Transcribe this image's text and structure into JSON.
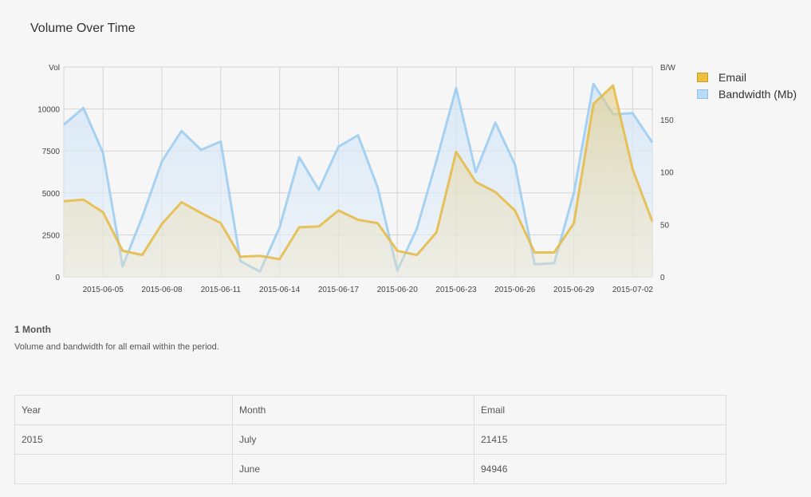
{
  "chart_data": {
    "type": "area",
    "title": "Volume Over Time",
    "y_left_label": "Vol",
    "y_right_label": "B/W",
    "ylim_left": [
      0,
      12500
    ],
    "ylim_right": [
      0,
      200
    ],
    "y_left_ticks": [
      "0",
      "2500",
      "5000",
      "7500",
      "10000"
    ],
    "y_right_ticks": [
      "0",
      "50",
      "100",
      "150"
    ],
    "x_tick_labels": [
      "2015-06-05",
      "2015-06-08",
      "2015-06-11",
      "2015-06-14",
      "2015-06-17",
      "2015-06-20",
      "2015-06-23",
      "2015-06-26",
      "2015-06-29",
      "2015-07-02"
    ],
    "grid": true,
    "legend_position": "right",
    "x": [
      "2015-06-03",
      "2015-06-04",
      "2015-06-05",
      "2015-06-06",
      "2015-06-07",
      "2015-06-08",
      "2015-06-09",
      "2015-06-10",
      "2015-06-11",
      "2015-06-12",
      "2015-06-13",
      "2015-06-14",
      "2015-06-15",
      "2015-06-16",
      "2015-06-17",
      "2015-06-18",
      "2015-06-19",
      "2015-06-20",
      "2015-06-21",
      "2015-06-22",
      "2015-06-23",
      "2015-06-24",
      "2015-06-25",
      "2015-06-26",
      "2015-06-27",
      "2015-06-28",
      "2015-06-29",
      "2015-06-30",
      "2015-07-01",
      "2015-07-02",
      "2015-07-03"
    ],
    "series": [
      {
        "name": "Email",
        "axis": "left",
        "color": "#e6bb4a",
        "values": [
          4500,
          4600,
          3850,
          1550,
          1300,
          3150,
          4450,
          3800,
          3200,
          1200,
          1250,
          1050,
          2950,
          3000,
          3950,
          3400,
          3200,
          1550,
          1300,
          2650,
          7450,
          5650,
          5050,
          3950,
          1450,
          1450,
          3200,
          10300,
          11400,
          6400,
          3300
        ]
      },
      {
        "name": "Bandwidth (Mb)",
        "axis": "right",
        "color": "#9fcdf0",
        "values": [
          145,
          161,
          118,
          10,
          57,
          110,
          139,
          121,
          129,
          15,
          5,
          47,
          114,
          83,
          124,
          135,
          85,
          6,
          46,
          111,
          180,
          100,
          147,
          107,
          12,
          13,
          80,
          184,
          155,
          156,
          128
        ]
      }
    ]
  },
  "period": {
    "title": "1 Month",
    "description": "Volume and bandwidth for all email within the period."
  },
  "table": {
    "headers": [
      "Year",
      "Month",
      "Email"
    ],
    "rows": [
      [
        "2015",
        "July",
        "21415"
      ],
      [
        "",
        "June",
        "94946"
      ]
    ]
  }
}
